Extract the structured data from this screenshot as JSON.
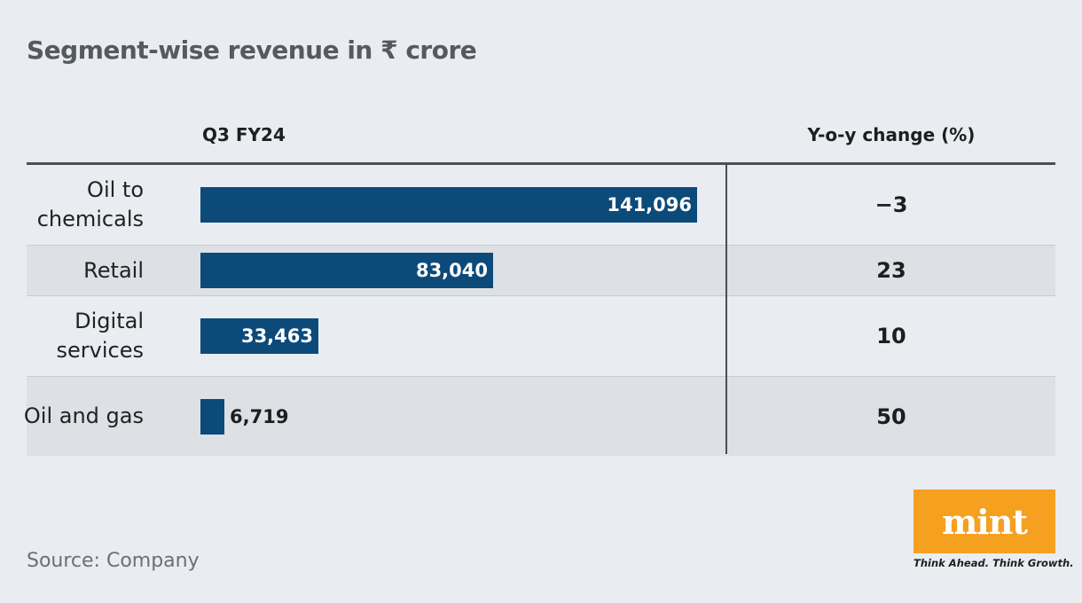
{
  "title": "Segment-wise revenue in ₹ crore",
  "columns": {
    "value_header": "Q3 FY24",
    "change_header": "Y-o-y change (%)"
  },
  "chart_data": {
    "type": "bar",
    "orientation": "horizontal",
    "categories": [
      "Oil to chemicals",
      "Retail",
      "Digital services",
      "Oil and gas"
    ],
    "values": [
      141096,
      83040,
      33463,
      6719
    ],
    "value_labels": [
      "141,096",
      "83,040",
      "33,463",
      "6,719"
    ],
    "yoy_change": [
      "−3",
      "23",
      "10",
      "50"
    ],
    "title": "Segment-wise revenue in ₹ crore",
    "bar_color": "#0c4a7a"
  },
  "source": "Source: Company",
  "logo": {
    "brand": "mint",
    "tagline": "Think Ahead. Think Growth.",
    "color": "#f6a01f"
  }
}
